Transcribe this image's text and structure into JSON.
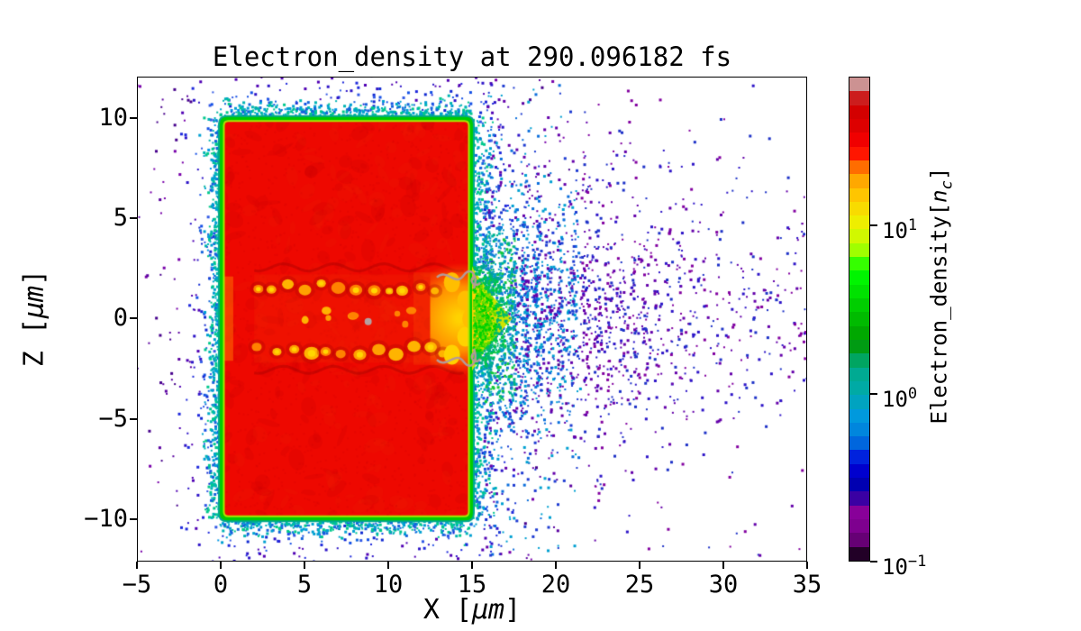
{
  "title": "Electron_density at 290.096182 fs",
  "chart_data": {
    "type": "heatmap",
    "title": "Electron_density at 290.096182 fs",
    "time_label": "290.096182 fs",
    "xlabel_parts": [
      {
        "text": "X ["
      },
      {
        "text": "μm",
        "italic": true
      },
      {
        "text": "]"
      }
    ],
    "ylabel_parts": [
      {
        "text": "Z ["
      },
      {
        "text": "μm",
        "italic": true
      },
      {
        "text": "]"
      }
    ],
    "xlim": [
      -5,
      35
    ],
    "ylim": [
      -12.1,
      12.05
    ],
    "xticks": [
      {
        "label": "−5",
        "value": -5
      },
      {
        "label": "0",
        "value": 0
      },
      {
        "label": "5",
        "value": 5
      },
      {
        "label": "10",
        "value": 10
      },
      {
        "label": "15",
        "value": 15
      },
      {
        "label": "20",
        "value": 20
      },
      {
        "label": "25",
        "value": 25
      },
      {
        "label": "30",
        "value": 30
      },
      {
        "label": "35",
        "value": 35
      }
    ],
    "yticks": [
      {
        "label": "10",
        "value": 10
      },
      {
        "label": "5",
        "value": 5
      },
      {
        "label": "0",
        "value": 0
      },
      {
        "label": "−5",
        "value": -5
      },
      {
        "label": "−10",
        "value": -10
      }
    ],
    "grid": false,
    "colorbar": {
      "label_parts": [
        {
          "text": "Electron_density["
        },
        {
          "text": "n",
          "italic": true
        },
        {
          "text": "c",
          "italic": true,
          "sub": true
        },
        {
          "text": "]"
        }
      ],
      "scale": "log",
      "vmin": 0.1,
      "vmax": 76.7,
      "n_bands": 35,
      "colormap": "nipy_spectral",
      "stops": [
        "#000000",
        "#770088",
        "#880099",
        "#0000aa",
        "#0000dd",
        "#0077dd",
        "#0099dd",
        "#00aaaa",
        "#00aa88",
        "#009900",
        "#00bb00",
        "#00dd00",
        "#00ff00",
        "#bbff00",
        "#eeee00",
        "#ffcc00",
        "#ff9900",
        "#ff0000",
        "#dd0000",
        "#cc0000",
        "#cccccc"
      ],
      "ticks": [
        {
          "base": "10",
          "exp": "1",
          "value": 10
        },
        {
          "base": "10",
          "exp": "0",
          "value": 1
        },
        {
          "base": "10",
          "exp": "−1",
          "value": 0.1
        }
      ]
    },
    "scene": {
      "slab": {
        "x0": 0,
        "x1": 15,
        "z0": -10,
        "z1": 10,
        "fill": "#ee0800",
        "rim_outer": "#00a88c",
        "rim_mid": "#00cc00",
        "rim_inner": "#aae600",
        "mottle": [
          "rgba(200,0,0,0.20)",
          "rgba(235,40,0,0.16)"
        ]
      },
      "channel": {
        "rows_z": [
          1.55,
          -1.55
        ],
        "x_start": 2.2,
        "x_end": 13.4,
        "blob_colors": [
          "#ff8200",
          "#ffa000",
          "#ffb400"
        ],
        "core_color": "#ffd700",
        "haze": "rgba(255,120,0,0.18)",
        "shadow": "rgba(150,0,0,0.35)",
        "gray_filament": "#b49a9a"
      },
      "rear_hotspot": {
        "cx": 14.25,
        "cz": 0,
        "colors": [
          "#ffd200",
          "#ff9100"
        ]
      },
      "plume": {
        "tip_x": 17.4,
        "base_x": 15.0,
        "half_height": 2.6,
        "fill_outer": "#cfe400",
        "fill_inner": "#ffd200",
        "speckles": [
          "#64dc00",
          "#00d200",
          "#00c846",
          "#00b478",
          "#00a0a0",
          "#00a0c8"
        ]
      },
      "halo": {
        "decay_um": 1.35,
        "near": [
          "#00aac8",
          "#00b4a0",
          "#0096e6"
        ],
        "mid": [
          "#1450e6",
          "#0f28d2",
          "#325ae6"
        ],
        "outer": [
          "#2d14c8",
          "#5000b4",
          "#1e28dc"
        ],
        "far": [
          "#5a00a0",
          "#46008c",
          "#7800aa"
        ]
      },
      "wake": {
        "x_start": 15.7,
        "stripe_period_um": 0.72,
        "sigma_z": 3.4,
        "near": [
          "#00b48c",
          "#14c83c",
          "#00a0c8",
          "#1478dc"
        ],
        "mid": [
          "#0a6edc",
          "#1e3cd2",
          "#00a0d2",
          "#6400aa"
        ],
        "far": [
          "#2d14c8",
          "#6400aa",
          "#1e32c8",
          "#8200a0"
        ]
      }
    }
  }
}
